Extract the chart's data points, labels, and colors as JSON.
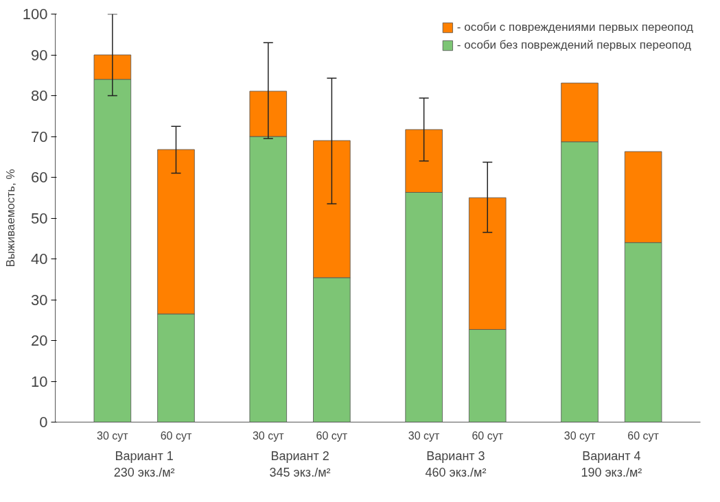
{
  "chart_data": {
    "type": "bar",
    "stacked": true,
    "ylabel": "Выживаемость, %",
    "categories": [
      "30 сут",
      "60 сут",
      "30 сут",
      "60 сут",
      "30 сут",
      "60 сут",
      "30 сут",
      "60 сут"
    ],
    "series": [
      {
        "name": "- особи без повреждений первых переопод",
        "color": "#7dc575",
        "values": [
          84,
          26.5,
          70,
          35.4,
          56.3,
          22.7,
          68.7,
          44
        ]
      },
      {
        "name": "- особи с повреждениями первых переопод",
        "color": "#ff8000",
        "values": [
          6,
          40.3,
          11.1,
          33.6,
          15.4,
          32.3,
          14.4,
          22.3
        ],
        "errors": [
          [
            80,
            100
          ],
          [
            61,
            72.5
          ],
          [
            69.5,
            93
          ],
          [
            53.5,
            84.3
          ],
          [
            64,
            79.4
          ],
          [
            46.5,
            63.7
          ],
          null,
          null
        ]
      }
    ],
    "annotations": [
      "Вариант 1\n230 экз./м²",
      "Вариант 2\n345 экз./м²",
      "Вариант 3\n460 экз./м²",
      "Вариант 4\n190 экз./м²"
    ],
    "ylim": [
      0,
      100
    ],
    "yticks": [
      0,
      10,
      20,
      30,
      40,
      50,
      60,
      70,
      80,
      90,
      100
    ],
    "legend": "top right",
    "grid": false
  }
}
